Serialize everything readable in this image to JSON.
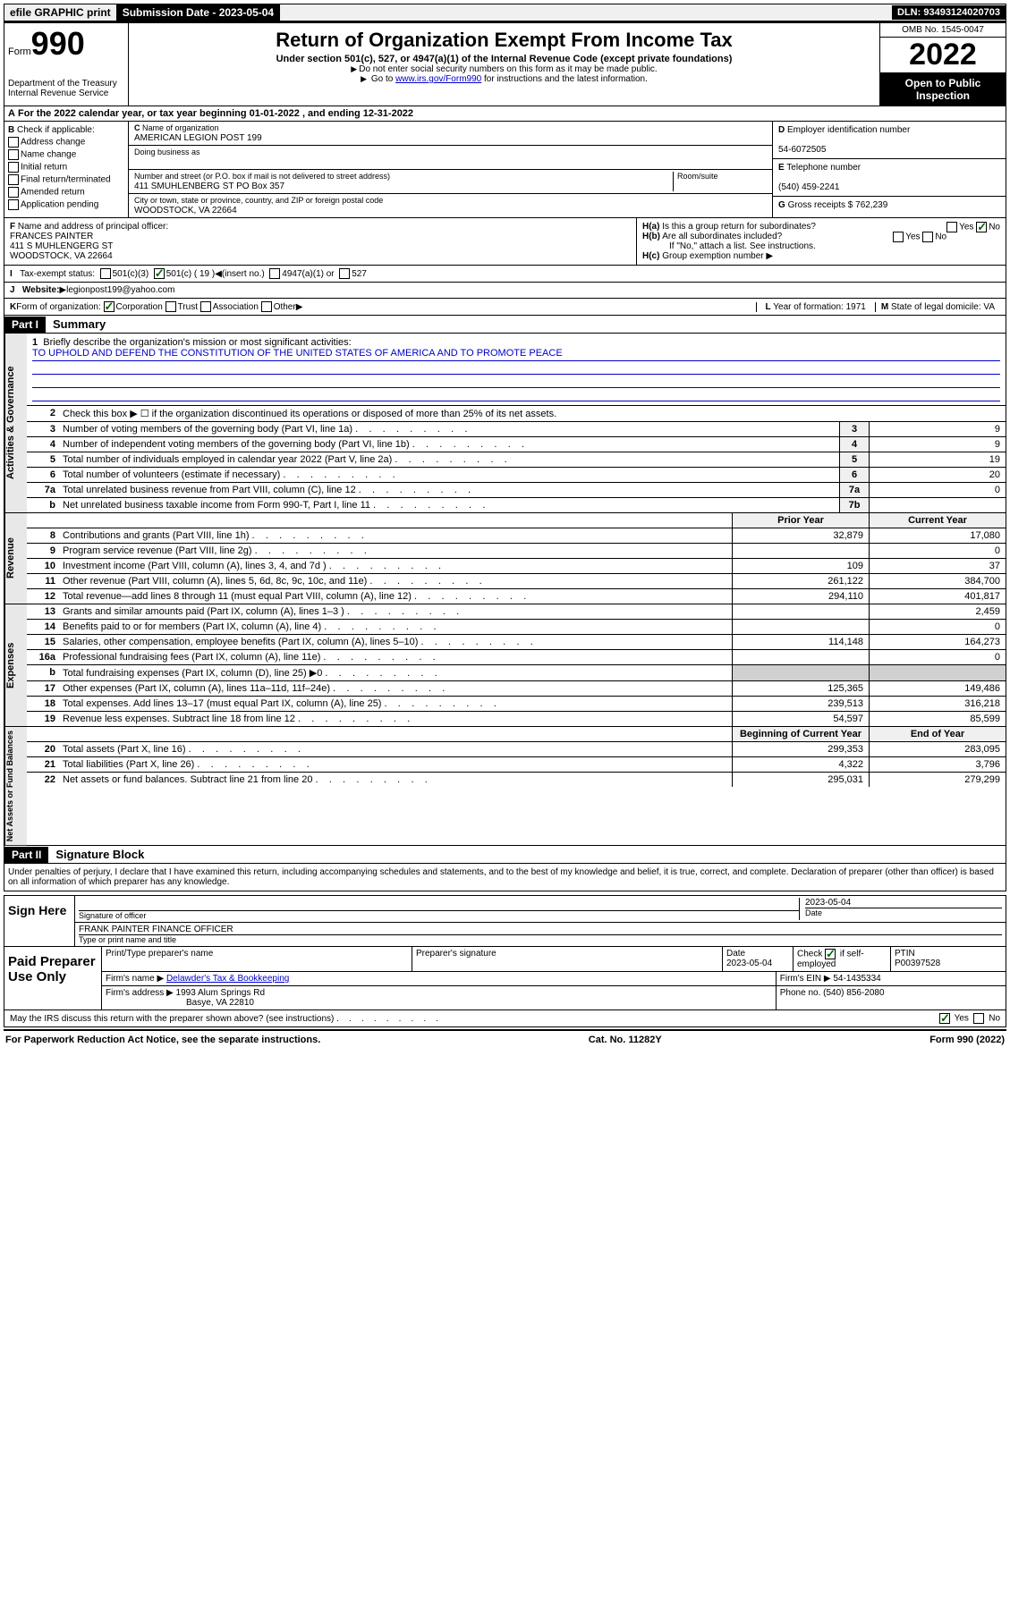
{
  "topbar": {
    "efile": "efile GRAPHIC print",
    "submission_label": "Submission Date - 2023-05-04",
    "dln": "DLN: 93493124020703"
  },
  "header": {
    "form_word": "Form",
    "form_number": "990",
    "dept": "Department of the Treasury",
    "irs": "Internal Revenue Service",
    "title": "Return of Organization Exempt From Income Tax",
    "subtitle": "Under section 501(c), 527, or 4947(a)(1) of the Internal Revenue Code (except private foundations)",
    "note1": "Do not enter social security numbers on this form as it may be made public.",
    "note2_pre": "Go to ",
    "note2_link": "www.irs.gov/Form990",
    "note2_post": " for instructions and the latest information.",
    "omb": "OMB No. 1545-0047",
    "year": "2022",
    "inspection": "Open to Public Inspection"
  },
  "section_a": "For the 2022 calendar year, or tax year beginning 01-01-2022    , and ending 12-31-2022",
  "col_b": {
    "label": "Check if applicable:",
    "items": [
      "Address change",
      "Name change",
      "Initial return",
      "Final return/terminated",
      "Amended return",
      "Application pending"
    ]
  },
  "col_c": {
    "name_label": "Name of organization",
    "name": "AMERICAN LEGION POST 199",
    "dba_label": "Doing business as",
    "dba": "",
    "street_label": "Number and street (or P.O. box if mail is not delivered to street address)",
    "room_label": "Room/suite",
    "street": "411 SMUHLENBERG ST PO Box 357",
    "city_label": "City or town, state or province, country, and ZIP or foreign postal code",
    "city": "WOODSTOCK, VA  22664"
  },
  "col_d": {
    "label": "Employer identification number",
    "value": "54-6072505"
  },
  "col_e": {
    "label": "Telephone number",
    "value": "(540) 459-2241"
  },
  "col_g": {
    "label": "Gross receipts $",
    "value": "762,239"
  },
  "row_f": {
    "label": "Name and address of principal officer:",
    "name": "FRANCES PAINTER",
    "addr1": "411 S MUHLENGERG ST",
    "addr2": "WOODSTOCK, VA  22664"
  },
  "row_h": {
    "ha": "Is this a group return for subordinates?",
    "hb": "Are all subordinates included?",
    "hb_note": "If \"No,\" attach a list. See instructions.",
    "hc": "Group exemption number"
  },
  "row_i": {
    "label": "Tax-exempt status:",
    "opts": [
      "501(c)(3)",
      "501(c) ( 19 )",
      "(insert no.)",
      "4947(a)(1) or",
      "527"
    ]
  },
  "row_j": {
    "label": "Website:",
    "value": "legionpost199@yahoo.com"
  },
  "row_k": {
    "label": "Form of organization:",
    "opts": [
      "Corporation",
      "Trust",
      "Association",
      "Other"
    ]
  },
  "row_l": {
    "label": "Year of formation:",
    "value": "1971"
  },
  "row_m": {
    "label": "State of legal domicile:",
    "value": "VA"
  },
  "part1": {
    "label": "Part I",
    "title": "Summary"
  },
  "governance": {
    "tab": "Activities & Governance",
    "line1_label": "Briefly describe the organization's mission or most significant activities:",
    "line1_text": "TO UPHOLD AND DEFEND THE CONSTITUTION OF THE UNITED STATES OF AMERICA AND TO PROMOTE PEACE",
    "line2": "Check this box ▶ ☐  if the organization discontinued its operations or disposed of more than 25% of its net assets.",
    "rows": [
      {
        "n": "3",
        "d": "Number of voting members of the governing body (Part VI, line 1a)",
        "b": "3",
        "v": "9"
      },
      {
        "n": "4",
        "d": "Number of independent voting members of the governing body (Part VI, line 1b)",
        "b": "4",
        "v": "9"
      },
      {
        "n": "5",
        "d": "Total number of individuals employed in calendar year 2022 (Part V, line 2a)",
        "b": "5",
        "v": "19"
      },
      {
        "n": "6",
        "d": "Total number of volunteers (estimate if necessary)",
        "b": "6",
        "v": "20"
      },
      {
        "n": "7a",
        "d": "Total unrelated business revenue from Part VIII, column (C), line 12",
        "b": "7a",
        "v": "0"
      },
      {
        "n": "b",
        "d": "Net unrelated business taxable income from Form 990-T, Part I, line 11",
        "b": "7b",
        "v": ""
      }
    ]
  },
  "cols": {
    "prior": "Prior Year",
    "current": "Current Year"
  },
  "revenue": {
    "tab": "Revenue",
    "rows": [
      {
        "n": "8",
        "d": "Contributions and grants (Part VIII, line 1h)",
        "p": "32,879",
        "c": "17,080"
      },
      {
        "n": "9",
        "d": "Program service revenue (Part VIII, line 2g)",
        "p": "",
        "c": "0"
      },
      {
        "n": "10",
        "d": "Investment income (Part VIII, column (A), lines 3, 4, and 7d )",
        "p": "109",
        "c": "37"
      },
      {
        "n": "11",
        "d": "Other revenue (Part VIII, column (A), lines 5, 6d, 8c, 9c, 10c, and 11e)",
        "p": "261,122",
        "c": "384,700"
      },
      {
        "n": "12",
        "d": "Total revenue—add lines 8 through 11 (must equal Part VIII, column (A), line 12)",
        "p": "294,110",
        "c": "401,817"
      }
    ]
  },
  "expenses": {
    "tab": "Expenses",
    "rows": [
      {
        "n": "13",
        "d": "Grants and similar amounts paid (Part IX, column (A), lines 1–3 )",
        "p": "",
        "c": "2,459"
      },
      {
        "n": "14",
        "d": "Benefits paid to or for members (Part IX, column (A), line 4)",
        "p": "",
        "c": "0"
      },
      {
        "n": "15",
        "d": "Salaries, other compensation, employee benefits (Part IX, column (A), lines 5–10)",
        "p": "114,148",
        "c": "164,273"
      },
      {
        "n": "16a",
        "d": "Professional fundraising fees (Part IX, column (A), line 11e)",
        "p": "",
        "c": "0"
      },
      {
        "n": "b",
        "d": "Total fundraising expenses (Part IX, column (D), line 25) ▶0",
        "p": "GRAY",
        "c": "GRAY"
      },
      {
        "n": "17",
        "d": "Other expenses (Part IX, column (A), lines 11a–11d, 11f–24e)",
        "p": "125,365",
        "c": "149,486"
      },
      {
        "n": "18",
        "d": "Total expenses. Add lines 13–17 (must equal Part IX, column (A), line 25)",
        "p": "239,513",
        "c": "316,218"
      },
      {
        "n": "19",
        "d": "Revenue less expenses. Subtract line 18 from line 12",
        "p": "54,597",
        "c": "85,599"
      }
    ]
  },
  "netassets": {
    "tab": "Net Assets or Fund Balances",
    "header": {
      "p": "Beginning of Current Year",
      "c": "End of Year"
    },
    "rows": [
      {
        "n": "20",
        "d": "Total assets (Part X, line 16)",
        "p": "299,353",
        "c": "283,095"
      },
      {
        "n": "21",
        "d": "Total liabilities (Part X, line 26)",
        "p": "4,322",
        "c": "3,796"
      },
      {
        "n": "22",
        "d": "Net assets or fund balances. Subtract line 21 from line 20",
        "p": "295,031",
        "c": "279,299"
      }
    ]
  },
  "part2": {
    "label": "Part II",
    "title": "Signature Block"
  },
  "penalties": "Under penalties of perjury, I declare that I have examined this return, including accompanying schedules and statements, and to the best of my knowledge and belief, it is true, correct, and complete. Declaration of preparer (other than officer) is based on all information of which preparer has any knowledge.",
  "sign": {
    "label": "Sign Here",
    "sig_label": "Signature of officer",
    "date": "2023-05-04",
    "date_label": "Date",
    "name": "FRANK PAINTER FINANCE OFFICER",
    "name_label": "Type or print name and title"
  },
  "preparer": {
    "label": "Paid Preparer Use Only",
    "h1": "Print/Type preparer's name",
    "h2": "Preparer's signature",
    "h3": "Date",
    "h3v": "2023-05-04",
    "h4": "Check ☑ if self-employed",
    "h5": "PTIN",
    "h5v": "P00397528",
    "firm_name_label": "Firm's name",
    "firm_name": "Delawder's Tax & Bookkeeping",
    "firm_ein_label": "Firm's EIN",
    "firm_ein": "54-1435334",
    "firm_addr_label": "Firm's address",
    "firm_addr1": "1993 Alum Springs Rd",
    "firm_addr2": "Basye, VA  22810",
    "phone_label": "Phone no.",
    "phone": "(540) 856-2080"
  },
  "may_discuss": "May the IRS discuss this return with the preparer shown above? (see instructions)",
  "footer": {
    "left": "For Paperwork Reduction Act Notice, see the separate instructions.",
    "center": "Cat. No. 11282Y",
    "right": "Form 990 (2022)"
  }
}
